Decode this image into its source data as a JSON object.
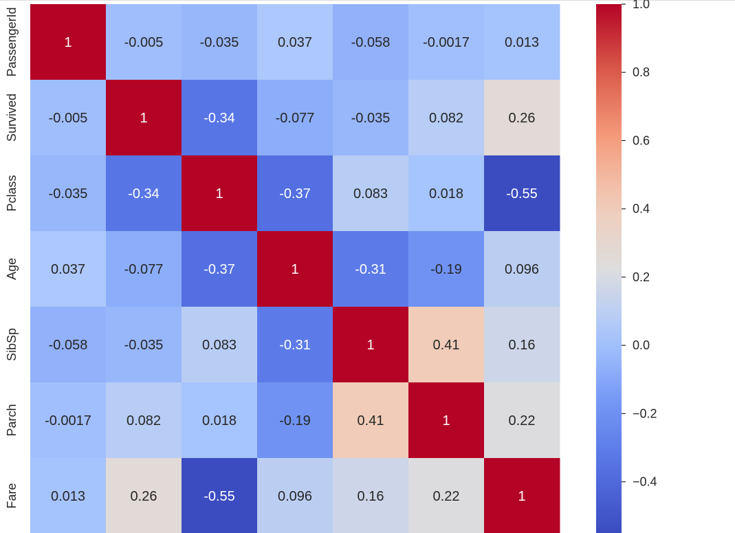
{
  "chart_data": {
    "type": "heatmap",
    "title": "",
    "xlabel": "",
    "ylabel": "",
    "colormap": "coolwarm",
    "row_labels": [
      "PassengerId",
      "Survived",
      "Pclass",
      "Age",
      "SibSp",
      "Parch",
      "Fare"
    ],
    "values": [
      [
        1,
        -0.005,
        -0.035,
        0.037,
        -0.058,
        -0.0017,
        0.013
      ],
      [
        -0.005,
        1,
        -0.34,
        -0.077,
        -0.035,
        0.082,
        0.26
      ],
      [
        -0.035,
        -0.34,
        1,
        -0.37,
        0.083,
        0.018,
        -0.55
      ],
      [
        0.037,
        -0.077,
        -0.37,
        1,
        -0.31,
        -0.19,
        0.096
      ],
      [
        -0.058,
        -0.035,
        0.083,
        -0.31,
        1,
        0.41,
        0.16
      ],
      [
        -0.0017,
        0.082,
        0.018,
        -0.19,
        0.41,
        1,
        0.22
      ],
      [
        0.013,
        0.26,
        -0.55,
        0.096,
        0.16,
        0.22,
        1
      ]
    ],
    "annotations": [
      [
        "1",
        "-0.005",
        "-0.035",
        "0.037",
        "-0.058",
        "-0.0017",
        "0.013"
      ],
      [
        "-0.005",
        "1",
        "-0.34",
        "-0.077",
        "-0.035",
        "0.082",
        "0.26"
      ],
      [
        "-0.035",
        "-0.34",
        "1",
        "-0.37",
        "0.083",
        "0.018",
        "-0.55"
      ],
      [
        "0.037",
        "-0.077",
        "-0.37",
        "1",
        "-0.31",
        "-0.19",
        "0.096"
      ],
      [
        "-0.058",
        "-0.035",
        "0.083",
        "-0.31",
        "1",
        "0.41",
        "0.16"
      ],
      [
        "-0.0017",
        "0.082",
        "0.018",
        "-0.19",
        "0.41",
        "1",
        "0.22"
      ],
      [
        "0.013",
        "0.26",
        "-0.55",
        "0.096",
        "0.16",
        "0.22",
        "1"
      ]
    ],
    "colorbar": {
      "range": [
        -0.55,
        1.0
      ],
      "ticks": [
        1.0,
        0.8,
        0.6,
        0.4,
        0.2,
        0.0,
        -0.2,
        -0.4
      ],
      "tick_labels": [
        "1.0",
        "0.8",
        "0.6",
        "0.4",
        "0.2",
        "0.0",
        "−0.2",
        "−0.4"
      ]
    },
    "colors": {
      "low": "#3b4cc0",
      "mid": "#dddddd",
      "high": "#b40426",
      "text_dark": "#262626",
      "text_light": "#ffffff"
    }
  }
}
